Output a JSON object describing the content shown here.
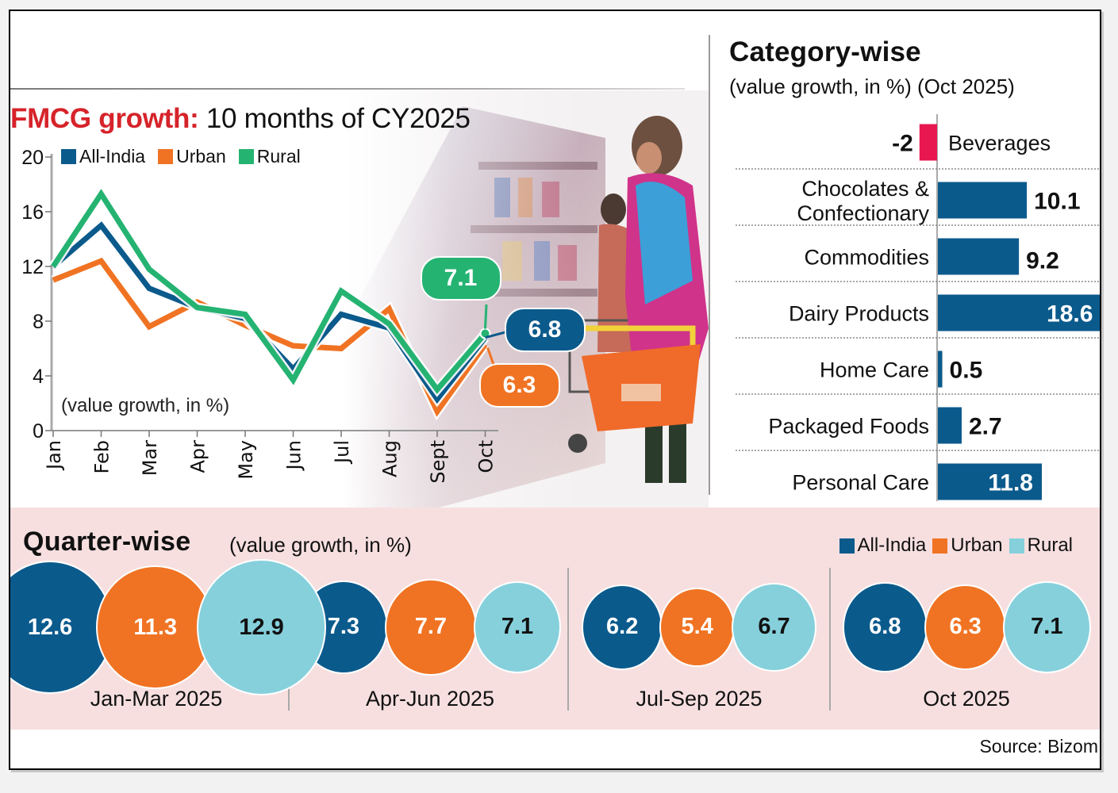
{
  "colors": {
    "all_india": "#0b5a8c",
    "urban": "#f07323",
    "rural_line": "#25b372",
    "rural_bubble": "#86d0dc",
    "negative": "#e8174f",
    "title_red": "#d6232a",
    "panel_bg": "#f7dfe0"
  },
  "line_panel": {
    "title_red": "FMCG growth:",
    "title_rest": " 10 months of CY2025",
    "note": "(value growth, in %)",
    "legend": [
      {
        "label": "All-India",
        "key": "all_india"
      },
      {
        "label": "Urban",
        "key": "urban"
      },
      {
        "label": "Rural",
        "key": "rural_line"
      }
    ],
    "callouts": {
      "rural": "7.1",
      "all_india": "6.8",
      "urban": "6.3"
    }
  },
  "category_panel": {
    "title": "Category-wise",
    "subtitle": "(value growth, in %) (Oct 2025)"
  },
  "quarter_panel": {
    "title": "Quarter-wise",
    "subtitle": "(value growth, in %)",
    "legend": [
      {
        "label": "All-India",
        "key": "all_india"
      },
      {
        "label": "Urban",
        "key": "urban"
      },
      {
        "label": "Rural",
        "key": "rural_bubble"
      }
    ]
  },
  "source": "Source: Bizom",
  "chart_data": [
    {
      "type": "line",
      "title": "FMCG growth: 10 months of CY2025",
      "ylabel": "(value growth, in %)",
      "xlabel": "",
      "x": [
        "Jan",
        "Feb",
        "Mar",
        "Apr",
        "May",
        "Jun",
        "Jul",
        "Aug",
        "Sept",
        "Oct"
      ],
      "ylim": [
        0,
        20
      ],
      "yticks": [
        0,
        4,
        8,
        12,
        16,
        20
      ],
      "grid": false,
      "legend": "top-left",
      "series": [
        {
          "name": "All-India",
          "values": [
            12.0,
            15.0,
            10.4,
            9.0,
            8.2,
            4.5,
            8.5,
            7.5,
            2.3,
            6.8
          ]
        },
        {
          "name": "Urban",
          "values": [
            11.0,
            12.4,
            7.6,
            9.4,
            7.7,
            6.2,
            6.0,
            8.9,
            1.4,
            6.3
          ]
        },
        {
          "name": "Rural",
          "values": [
            12.0,
            17.3,
            11.8,
            9.0,
            8.5,
            3.7,
            10.2,
            7.8,
            3.0,
            7.1
          ]
        }
      ],
      "annotations": [
        {
          "series": "Rural",
          "x": "Oct",
          "label": "7.1"
        },
        {
          "series": "All-India",
          "x": "Oct",
          "label": "6.8"
        },
        {
          "series": "Urban",
          "x": "Oct",
          "label": "6.3"
        }
      ]
    },
    {
      "type": "bar",
      "orientation": "horizontal",
      "title": "Category-wise",
      "subtitle": "(value growth, in %) (Oct 2025)",
      "categories": [
        "Beverages",
        "Chocolates & Confectionary",
        "Commodities",
        "Dairy Products",
        "Home Care",
        "Packaged Foods",
        "Personal Care"
      ],
      "category_lines": [
        [
          "Beverages"
        ],
        [
          "Chocolates &",
          "Confectionary"
        ],
        [
          "Commodities"
        ],
        [
          "Dairy Products"
        ],
        [
          "Home Care"
        ],
        [
          "Packaged Foods"
        ],
        [
          "Personal Care"
        ]
      ],
      "values": [
        -2,
        10.1,
        9.2,
        18.6,
        0.5,
        2.7,
        11.8
      ],
      "labels": [
        "-2",
        "10.1",
        "9.2",
        "18.6",
        "0.5",
        "2.7",
        "11.8"
      ],
      "xlim": [
        -2,
        18.6
      ]
    },
    {
      "type": "bubble",
      "title": "Quarter-wise",
      "subtitle": "(value growth, in %)",
      "categories": [
        "Jan-Mar 2025",
        "Apr-Jun 2025",
        "Jul-Sep 2025",
        "Oct 2025"
      ],
      "series": [
        {
          "name": "All-India",
          "values": [
            12.6,
            7.3,
            6.2,
            6.8
          ],
          "labels": [
            "12.6",
            "7.3",
            "6.2",
            "6.8"
          ]
        },
        {
          "name": "Urban",
          "values": [
            11.3,
            7.7,
            5.4,
            6.3
          ],
          "labels": [
            "11.3",
            "7.7",
            "5.4",
            "6.3"
          ]
        },
        {
          "name": "Rural",
          "values": [
            12.9,
            7.1,
            6.7,
            7.1
          ],
          "labels": [
            "12.9",
            "7.1",
            "6.7",
            "7.1"
          ]
        }
      ],
      "legend": "top-right"
    }
  ]
}
